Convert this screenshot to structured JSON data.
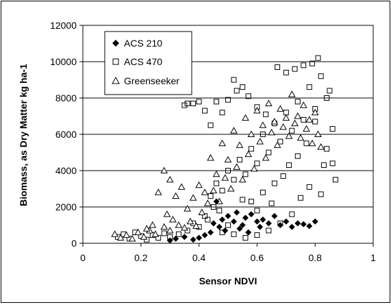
{
  "chart_data": {
    "type": "scatter",
    "title": "",
    "xlabel": "Sensor NDVI",
    "ylabel": "Biomass, as Dry Matter kg ha-1",
    "xlim": [
      0,
      1
    ],
    "ylim": [
      0,
      12000
    ],
    "xticks": [
      "0",
      "0.2",
      "0.4",
      "0.6",
      "0.8",
      "1"
    ],
    "yticks": [
      "0",
      "2000",
      "4000",
      "6000",
      "8000",
      "10000",
      "12000"
    ],
    "grid": "horizontal",
    "legend_position": "top-left",
    "series": [
      {
        "name": "ACS 210",
        "marker": "diamond",
        "color": "#000000",
        "points": [
          [
            0.3,
            150
          ],
          [
            0.32,
            250
          ],
          [
            0.35,
            350
          ],
          [
            0.38,
            200
          ],
          [
            0.4,
            300
          ],
          [
            0.42,
            450
          ],
          [
            0.44,
            600
          ],
          [
            0.45,
            1100
          ],
          [
            0.46,
            2300
          ],
          [
            0.47,
            900
          ],
          [
            0.48,
            1300
          ],
          [
            0.5,
            1500
          ],
          [
            0.52,
            1200
          ],
          [
            0.53,
            1700
          ],
          [
            0.54,
            800
          ],
          [
            0.55,
            1000
          ],
          [
            0.56,
            1400
          ],
          [
            0.58,
            1600
          ],
          [
            0.6,
            1200
          ],
          [
            0.62,
            1300
          ],
          [
            0.64,
            1100
          ],
          [
            0.66,
            1500
          ],
          [
            0.68,
            1000
          ],
          [
            0.7,
            1200
          ],
          [
            0.72,
            900
          ],
          [
            0.74,
            1100
          ],
          [
            0.76,
            1050
          ],
          [
            0.78,
            950
          ],
          [
            0.8,
            1200
          ],
          [
            0.49,
            700
          ],
          [
            0.57,
            600
          ],
          [
            0.61,
            900
          ]
        ]
      },
      {
        "name": "ACS 470",
        "marker": "square",
        "color": "#000000",
        "points": [
          [
            0.12,
            350
          ],
          [
            0.14,
            500
          ],
          [
            0.16,
            250
          ],
          [
            0.18,
            600
          ],
          [
            0.2,
            400
          ],
          [
            0.22,
            200
          ],
          [
            0.24,
            450
          ],
          [
            0.26,
            300
          ],
          [
            0.28,
            550
          ],
          [
            0.3,
            350
          ],
          [
            0.33,
            500
          ],
          [
            0.36,
            700
          ],
          [
            0.38,
            1100
          ],
          [
            0.4,
            900
          ],
          [
            0.42,
            1500
          ],
          [
            0.43,
            1300
          ],
          [
            0.44,
            2600
          ],
          [
            0.45,
            2000
          ],
          [
            0.46,
            3300
          ],
          [
            0.47,
            1800
          ],
          [
            0.48,
            2900
          ],
          [
            0.5,
            4000
          ],
          [
            0.52,
            3500
          ],
          [
            0.54,
            4600
          ],
          [
            0.56,
            3800
          ],
          [
            0.58,
            5200
          ],
          [
            0.6,
            4400
          ],
          [
            0.62,
            6000
          ],
          [
            0.64,
            5000
          ],
          [
            0.66,
            6600
          ],
          [
            0.68,
            5600
          ],
          [
            0.7,
            7200
          ],
          [
            0.72,
            6200
          ],
          [
            0.74,
            7800
          ],
          [
            0.76,
            6800
          ],
          [
            0.78,
            8600
          ],
          [
            0.8,
            7400
          ],
          [
            0.82,
            9200
          ],
          [
            0.84,
            8000
          ],
          [
            0.86,
            4400
          ],
          [
            0.81,
            10200
          ],
          [
            0.79,
            9900
          ],
          [
            0.76,
            9800
          ],
          [
            0.73,
            9600
          ],
          [
            0.85,
            8400
          ],
          [
            0.87,
            3500
          ],
          [
            0.38,
            7700
          ],
          [
            0.4,
            7800
          ],
          [
            0.42,
            7300
          ],
          [
            0.44,
            6500
          ],
          [
            0.46,
            7800
          ],
          [
            0.48,
            7200
          ],
          [
            0.5,
            7900
          ],
          [
            0.53,
            8400
          ],
          [
            0.55,
            8600
          ],
          [
            0.57,
            8100
          ],
          [
            0.6,
            7500
          ],
          [
            0.63,
            7100
          ],
          [
            0.35,
            7600
          ],
          [
            0.36,
            7700
          ],
          [
            0.52,
            9000
          ],
          [
            0.67,
            9700
          ],
          [
            0.7,
            9400
          ],
          [
            0.75,
            2500
          ],
          [
            0.78,
            3100
          ],
          [
            0.82,
            2700
          ],
          [
            0.84,
            5200
          ],
          [
            0.86,
            6300
          ],
          [
            0.83,
            4300
          ],
          [
            0.65,
            2200
          ],
          [
            0.6,
            1800
          ],
          [
            0.55,
            2400
          ],
          [
            0.5,
            1000
          ],
          [
            0.48,
            600
          ],
          [
            0.52,
            500
          ],
          [
            0.56,
            300
          ],
          [
            0.6,
            450
          ],
          [
            0.64,
            700
          ],
          [
            0.68,
            1100
          ],
          [
            0.72,
            1600
          ],
          [
            0.74,
            4800
          ],
          [
            0.77,
            5500
          ],
          [
            0.8,
            6700
          ],
          [
            0.69,
            3700
          ],
          [
            0.71,
            4300
          ],
          [
            0.66,
            3300
          ],
          [
            0.62,
            2800
          ],
          [
            0.58,
            2300
          ]
        ]
      },
      {
        "name": "Greenseeker",
        "marker": "triangle",
        "color": "#000000",
        "points": [
          [
            0.11,
            500
          ],
          [
            0.13,
            300
          ],
          [
            0.15,
            450
          ],
          [
            0.17,
            250
          ],
          [
            0.19,
            600
          ],
          [
            0.21,
            350
          ],
          [
            0.23,
            700
          ],
          [
            0.25,
            500
          ],
          [
            0.26,
            2800
          ],
          [
            0.28,
            4000
          ],
          [
            0.3,
            3500
          ],
          [
            0.32,
            2600
          ],
          [
            0.34,
            3100
          ],
          [
            0.36,
            1900
          ],
          [
            0.38,
            2500
          ],
          [
            0.4,
            3200
          ],
          [
            0.42,
            2800
          ],
          [
            0.44,
            4700
          ],
          [
            0.46,
            3800
          ],
          [
            0.48,
            5500
          ],
          [
            0.5,
            4600
          ],
          [
            0.52,
            6200
          ],
          [
            0.54,
            5400
          ],
          [
            0.56,
            6900
          ],
          [
            0.58,
            6000
          ],
          [
            0.6,
            7300
          ],
          [
            0.62,
            6500
          ],
          [
            0.64,
            7700
          ],
          [
            0.66,
            6700
          ],
          [
            0.68,
            7400
          ],
          [
            0.7,
            6900
          ],
          [
            0.72,
            8200
          ],
          [
            0.74,
            7000
          ],
          [
            0.76,
            7600
          ],
          [
            0.78,
            6800
          ],
          [
            0.8,
            7200
          ],
          [
            0.82,
            5300
          ],
          [
            0.29,
            1600
          ],
          [
            0.31,
            1300
          ],
          [
            0.33,
            1000
          ],
          [
            0.35,
            850
          ],
          [
            0.37,
            1200
          ],
          [
            0.39,
            950
          ],
          [
            0.41,
            1700
          ],
          [
            0.43,
            2200
          ],
          [
            0.45,
            2900
          ],
          [
            0.47,
            2300
          ],
          [
            0.49,
            3600
          ],
          [
            0.51,
            3000
          ],
          [
            0.53,
            4200
          ],
          [
            0.55,
            3500
          ],
          [
            0.57,
            4900
          ],
          [
            0.59,
            4100
          ],
          [
            0.61,
            5600
          ],
          [
            0.63,
            4700
          ],
          [
            0.65,
            6100
          ],
          [
            0.67,
            5400
          ],
          [
            0.69,
            6400
          ],
          [
            0.71,
            5900
          ],
          [
            0.73,
            6600
          ],
          [
            0.75,
            5800
          ],
          [
            0.77,
            6300
          ],
          [
            0.79,
            5500
          ],
          [
            0.81,
            6000
          ],
          [
            0.28,
            900
          ],
          [
            0.3,
            700
          ],
          [
            0.24,
            1000
          ],
          [
            0.22,
            800
          ]
        ]
      }
    ]
  }
}
